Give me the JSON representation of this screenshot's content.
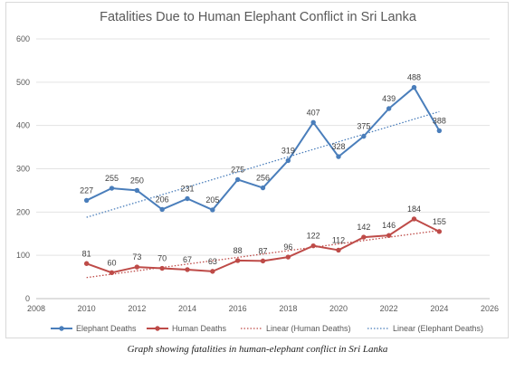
{
  "caption": "Graph showing fatalities in human-elephant conflict in Sri Lanka",
  "chart_data": {
    "type": "line",
    "title": "Fatalities Due to Human Elephant Conflict in Sri Lanka",
    "xlim": [
      2008,
      2026
    ],
    "ylim": [
      0,
      600
    ],
    "x_ticks": [
      2008,
      2010,
      2012,
      2014,
      2016,
      2018,
      2020,
      2022,
      2024,
      2026
    ],
    "y_ticks": [
      0,
      100,
      200,
      300,
      400,
      500,
      600
    ],
    "grid": "horizontal",
    "legend_position": "bottom",
    "x": [
      2010,
      2011,
      2012,
      2013,
      2014,
      2015,
      2016,
      2017,
      2018,
      2019,
      2020,
      2021,
      2022,
      2023,
      2024
    ],
    "series": [
      {
        "name": "Elephant Deaths",
        "color": "#4a7ebb",
        "values": [
          227,
          255,
          250,
          206,
          231,
          205,
          275,
          256,
          319,
          407,
          328,
          375,
          439,
          488,
          388
        ]
      },
      {
        "name": "Human Deaths",
        "color": "#be4b48",
        "values": [
          81,
          60,
          73,
          70,
          67,
          63,
          88,
          87,
          96,
          122,
          112,
          142,
          146,
          184,
          155
        ]
      }
    ],
    "trendlines": [
      {
        "name": "Linear (Human Deaths)",
        "of": "Human Deaths",
        "type": "linear",
        "color": "#be4b48"
      },
      {
        "name": "Linear (Elephant Deaths)",
        "of": "Elephant Deaths",
        "type": "linear",
        "color": "#4a7ebb"
      }
    ]
  }
}
